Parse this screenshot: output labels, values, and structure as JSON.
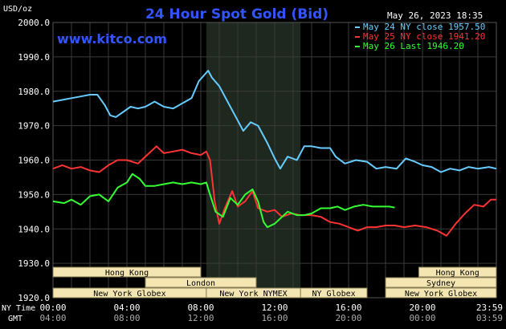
{
  "header": {
    "title": "24 Hour Spot Gold (Bid)",
    "unit": "USD/oz",
    "site": "www.kitco.com",
    "timestamp": "May 26, 2023 18:35"
  },
  "colors": {
    "background": "#000000",
    "grid": "#3a3a3a",
    "title": "#3355ff",
    "axis_text": "#ffffff",
    "shade": "#1e281e",
    "market_box": "#f3e6b3",
    "market_text": "#000000"
  },
  "chart_data": {
    "type": "line",
    "title": "24 Hour Spot Gold (Bid)",
    "ylabel": "USD/oz",
    "ylim": [
      1920,
      2000
    ],
    "y_ticks": [
      "2000.0",
      "1990.0",
      "1980.0",
      "1970.0",
      "1960.0",
      "1950.0",
      "1940.0",
      "1930.0",
      "1920.0"
    ],
    "x_range_hours": [
      0,
      24
    ],
    "x_ticks_ny": [
      "00:00",
      "04:00",
      "08:00",
      "12:00",
      "16:00",
      "20:00",
      "23:59"
    ],
    "x_ticks_gmt": [
      "04:00",
      "08:00",
      "12:00",
      "16:00",
      "20:00",
      "00:00",
      "03:59"
    ],
    "x_axis_label_ny": "NY Time",
    "x_axis_label_gmt": "GMT",
    "shaded_interval_hours": [
      8.3,
      13.4
    ],
    "legend": [
      {
        "text": "May 24 NY close 1957.50",
        "color": "#66ccff"
      },
      {
        "text": "May 25 NY close 1941.20",
        "color": "#ff3333"
      },
      {
        "text": "May 26 Last 1946.20",
        "color": "#33ff33"
      }
    ],
    "series": [
      {
        "name": "May 24",
        "color": "#66ccff",
        "points": [
          [
            0,
            1977
          ],
          [
            0.5,
            1977.5
          ],
          [
            1,
            1978
          ],
          [
            1.5,
            1978.5
          ],
          [
            2,
            1979
          ],
          [
            2.4,
            1979
          ],
          [
            2.8,
            1976
          ],
          [
            3.1,
            1973
          ],
          [
            3.4,
            1972.5
          ],
          [
            3.8,
            1974
          ],
          [
            4.2,
            1975.5
          ],
          [
            4.6,
            1975
          ],
          [
            5,
            1975.5
          ],
          [
            5.5,
            1977
          ],
          [
            6,
            1975.5
          ],
          [
            6.5,
            1975
          ],
          [
            7,
            1976.5
          ],
          [
            7.5,
            1978
          ],
          [
            7.9,
            1983
          ],
          [
            8.4,
            1986
          ],
          [
            8.6,
            1984
          ],
          [
            9,
            1981.5
          ],
          [
            9.5,
            1976.5
          ],
          [
            10,
            1971.5
          ],
          [
            10.3,
            1968.5
          ],
          [
            10.7,
            1971
          ],
          [
            11.1,
            1970
          ],
          [
            11.6,
            1965
          ],
          [
            12,
            1960.5
          ],
          [
            12.3,
            1957.5
          ],
          [
            12.7,
            1961
          ],
          [
            13.2,
            1960
          ],
          [
            13.6,
            1964
          ],
          [
            14,
            1964
          ],
          [
            14.5,
            1963.5
          ],
          [
            15,
            1963.5
          ],
          [
            15.3,
            1961
          ],
          [
            15.8,
            1959
          ],
          [
            16.4,
            1960
          ],
          [
            17,
            1959.5
          ],
          [
            17.5,
            1957.5
          ],
          [
            18,
            1958
          ],
          [
            18.6,
            1957.5
          ],
          [
            19.1,
            1960.5
          ],
          [
            19.6,
            1959.5
          ],
          [
            20,
            1958.5
          ],
          [
            20.5,
            1958
          ],
          [
            21,
            1956.5
          ],
          [
            21.5,
            1957.5
          ],
          [
            22,
            1957
          ],
          [
            22.5,
            1958
          ],
          [
            23,
            1957.5
          ],
          [
            23.6,
            1958
          ],
          [
            24,
            1957.5
          ]
        ]
      },
      {
        "name": "May 25",
        "color": "#ff3333",
        "points": [
          [
            0,
            1957.5
          ],
          [
            0.5,
            1958.5
          ],
          [
            1,
            1957.5
          ],
          [
            1.5,
            1958
          ],
          [
            2,
            1957
          ],
          [
            2.5,
            1956.5
          ],
          [
            3,
            1958.5
          ],
          [
            3.5,
            1960
          ],
          [
            4,
            1960
          ],
          [
            4.6,
            1959
          ],
          [
            5.2,
            1962
          ],
          [
            5.6,
            1964
          ],
          [
            6,
            1962
          ],
          [
            6.5,
            1962.5
          ],
          [
            7,
            1963
          ],
          [
            7.5,
            1962
          ],
          [
            8,
            1961.5
          ],
          [
            8.3,
            1962.5
          ],
          [
            8.5,
            1960
          ],
          [
            8.75,
            1948
          ],
          [
            9,
            1941.5
          ],
          [
            9.3,
            1946
          ],
          [
            9.7,
            1951
          ],
          [
            10,
            1946.5
          ],
          [
            10.4,
            1948
          ],
          [
            10.8,
            1951
          ],
          [
            11.1,
            1946
          ],
          [
            11.6,
            1945
          ],
          [
            12,
            1945.5
          ],
          [
            12.4,
            1943.5
          ],
          [
            12.9,
            1944.5
          ],
          [
            13.4,
            1944
          ],
          [
            14,
            1944
          ],
          [
            14.5,
            1943.5
          ],
          [
            15,
            1942
          ],
          [
            15.5,
            1941.5
          ],
          [
            16,
            1940.5
          ],
          [
            16.5,
            1939.5
          ],
          [
            17,
            1940.5
          ],
          [
            17.5,
            1940.5
          ],
          [
            18,
            1941
          ],
          [
            18.5,
            1941
          ],
          [
            19,
            1940.5
          ],
          [
            19.6,
            1941
          ],
          [
            20.2,
            1940.5
          ],
          [
            20.8,
            1939.5
          ],
          [
            21.3,
            1938
          ],
          [
            21.8,
            1941.5
          ],
          [
            22.3,
            1944.5
          ],
          [
            22.8,
            1947
          ],
          [
            23.3,
            1946.5
          ],
          [
            23.7,
            1948.5
          ],
          [
            24,
            1948.5
          ]
        ]
      },
      {
        "name": "May 26",
        "color": "#33ff33",
        "points": [
          [
            0,
            1948
          ],
          [
            0.6,
            1947.5
          ],
          [
            1,
            1948.5
          ],
          [
            1.5,
            1947
          ],
          [
            2,
            1949.5
          ],
          [
            2.5,
            1950
          ],
          [
            3,
            1948
          ],
          [
            3.5,
            1952
          ],
          [
            4,
            1953.5
          ],
          [
            4.3,
            1956
          ],
          [
            4.7,
            1954.5
          ],
          [
            5,
            1952.5
          ],
          [
            5.5,
            1952.5
          ],
          [
            6,
            1953
          ],
          [
            6.5,
            1953.5
          ],
          [
            7,
            1953
          ],
          [
            7.5,
            1953.5
          ],
          [
            8,
            1953
          ],
          [
            8.3,
            1953.5
          ],
          [
            8.5,
            1950
          ],
          [
            8.8,
            1945
          ],
          [
            9.2,
            1943.5
          ],
          [
            9.6,
            1949
          ],
          [
            10,
            1947
          ],
          [
            10.4,
            1950
          ],
          [
            10.8,
            1951.5
          ],
          [
            11.1,
            1948
          ],
          [
            11.4,
            1942
          ],
          [
            11.6,
            1940.5
          ],
          [
            12,
            1941.5
          ],
          [
            12.3,
            1943
          ],
          [
            12.7,
            1945
          ],
          [
            13.2,
            1944
          ],
          [
            13.6,
            1944
          ],
          [
            14,
            1944.5
          ],
          [
            14.5,
            1946
          ],
          [
            15,
            1946
          ],
          [
            15.4,
            1946.5
          ],
          [
            15.8,
            1945.5
          ],
          [
            16.3,
            1946.5
          ],
          [
            16.8,
            1947
          ],
          [
            17.3,
            1946.5
          ],
          [
            17.7,
            1946.5
          ],
          [
            18.2,
            1946.5
          ],
          [
            18.5,
            1946.2
          ]
        ]
      }
    ],
    "markets": [
      {
        "name": "Hong Kong",
        "start": 0,
        "end": 8.0,
        "row": 0
      },
      {
        "name": "London",
        "start": 5.0,
        "end": 11.0,
        "row": 1
      },
      {
        "name": "New York Globex",
        "start": 0,
        "end": 8.3,
        "row": 2
      },
      {
        "name": "New York NYMEX",
        "start": 8.3,
        "end": 13.4,
        "row": 2
      },
      {
        "name": "NY Globex",
        "start": 13.4,
        "end": 17.0,
        "row": 2
      },
      {
        "name": "Hong Kong",
        "start": 19.8,
        "end": 24,
        "row": 0
      },
      {
        "name": "Sydney",
        "start": 18.0,
        "end": 24,
        "row": 1
      },
      {
        "name": "New York Globex",
        "start": 18.0,
        "end": 24,
        "row": 2
      }
    ]
  }
}
